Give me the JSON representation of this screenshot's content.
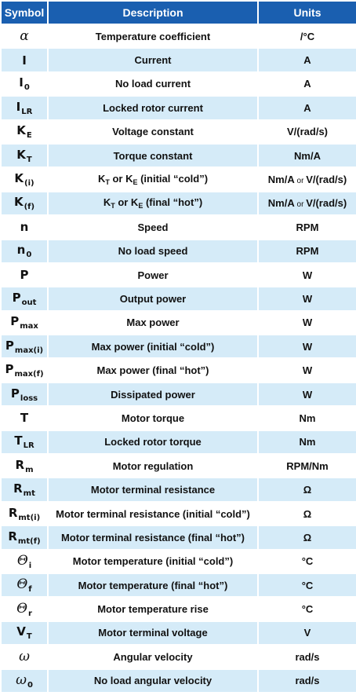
{
  "headers": {
    "symbol": "Symbol",
    "description": "Description",
    "units": "Units"
  },
  "rows": [
    {
      "sym": "α",
      "sub": "",
      "greek": true,
      "desc": "Temperature coefficient",
      "units": "/°C"
    },
    {
      "sym": "I",
      "sub": "",
      "desc": "Current",
      "units": "A"
    },
    {
      "sym": "I",
      "sub": "0",
      "desc": "No load current",
      "units": "A"
    },
    {
      "sym": "I",
      "sub": "LR",
      "desc": "Locked rotor current",
      "units": "A"
    },
    {
      "sym": "K",
      "sub": "E",
      "desc": "Voltage constant",
      "units": "V/(rad/s)"
    },
    {
      "sym": "K",
      "sub": "T",
      "desc": "Torque constant",
      "units": "Nm/A"
    },
    {
      "sym": "K",
      "sub": "(i)",
      "desc_parts": [
        "K",
        "T",
        " or K",
        "E",
        " (initial “cold”)"
      ],
      "units_parts": [
        "Nm/A",
        " or ",
        "V/(rad/s)"
      ]
    },
    {
      "sym": "K",
      "sub": "(f)",
      "desc_parts": [
        "K",
        "T",
        " or K",
        "E",
        " (final “hot”)"
      ],
      "units_parts": [
        "Nm/A",
        " or ",
        "V/(rad/s)"
      ]
    },
    {
      "sym": "n",
      "sub": "",
      "desc": "Speed",
      "units": "RPM"
    },
    {
      "sym": "n",
      "sub": "0",
      "desc": "No load speed",
      "units": "RPM"
    },
    {
      "sym": "P",
      "sub": "",
      "desc": "Power",
      "units": "W"
    },
    {
      "sym": "P",
      "sub": "out",
      "desc": "Output power",
      "units": "W"
    },
    {
      "sym": "P",
      "sub": "max",
      "desc": "Max power",
      "units": "W"
    },
    {
      "sym": "P",
      "sub": "max(i)",
      "desc": "Max power (initial “cold”)",
      "units": "W"
    },
    {
      "sym": "P",
      "sub": "max(f)",
      "desc": "Max power (final “hot”)",
      "units": "W"
    },
    {
      "sym": "P",
      "sub": "loss",
      "desc": "Dissipated power",
      "units": "W"
    },
    {
      "sym": "T",
      "sub": "",
      "desc": "Motor torque",
      "units": "Nm"
    },
    {
      "sym": "T",
      "sub": "LR",
      "desc": "Locked rotor torque",
      "units": "Nm"
    },
    {
      "sym": "R",
      "sub": "m",
      "desc": "Motor regulation",
      "units": "RPM/Nm"
    },
    {
      "sym": "R",
      "sub": "mt",
      "desc": "Motor terminal resistance",
      "units": "Ω"
    },
    {
      "sym": "R",
      "sub": "mt(i)",
      "desc": "Motor terminal resistance (initial “cold”)",
      "units": "Ω"
    },
    {
      "sym": "R",
      "sub": "mt(f)",
      "desc": "Motor terminal resistance (final “hot”)",
      "units": "Ω"
    },
    {
      "sym": "Θ",
      "sub": "i",
      "desc": "Motor temperature (initial “cold”)",
      "units": "°C"
    },
    {
      "sym": "Θ",
      "sub": "f",
      "desc": "Motor temperature (final “hot”)",
      "units": "°C"
    },
    {
      "sym": "Θ",
      "sub": "r",
      "desc": "Motor temperature rise",
      "units": "°C"
    },
    {
      "sym": "V",
      "sub": "T",
      "desc": "Motor terminal voltage",
      "units": "V"
    },
    {
      "sym": "ω",
      "sub": "",
      "greek": true,
      "desc": "Angular velocity",
      "units": "rad/s"
    },
    {
      "sym": "ω",
      "sub": "0",
      "greek": true,
      "desc": "No load angular velocity",
      "units": "rad/s"
    }
  ],
  "colors": {
    "header_bg": "#1a5fb0",
    "row_alt_bg": "#d5ebf8"
  }
}
